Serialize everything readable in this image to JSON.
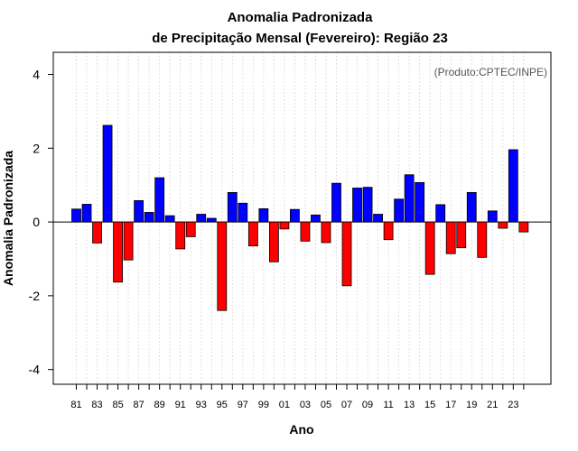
{
  "chart_data": {
    "type": "bar",
    "title": "Anomalia Padronizada",
    "subtitle": "de Precipitação Mensal (Fevereiro): Região 23",
    "xlabel": "Ano",
    "ylabel": "Anomalia Padronizada",
    "annotation": "(Produto:CPTEC/INPE)",
    "ylim": [
      -4.4,
      4.6
    ],
    "yticks": [
      -4,
      -2,
      0,
      2,
      4
    ],
    "xtick_labels": [
      "81",
      "83",
      "85",
      "87",
      "89",
      "91",
      "93",
      "95",
      "97",
      "99",
      "01",
      "03",
      "05",
      "07",
      "09",
      "11",
      "13",
      "15",
      "17",
      "19",
      "21",
      "23"
    ],
    "grid": "vertical dotted",
    "colors": {
      "positive": "#0000ff",
      "negative": "#ff0000"
    },
    "categories": [
      "1981",
      "1982",
      "1983",
      "1984",
      "1985",
      "1986",
      "1987",
      "1988",
      "1989",
      "1990",
      "1991",
      "1992",
      "1993",
      "1994",
      "1995",
      "1996",
      "1997",
      "1998",
      "1999",
      "2000",
      "2001",
      "2002",
      "2003",
      "2004",
      "2005",
      "2006",
      "2007",
      "2008",
      "2009",
      "2010",
      "2011",
      "2012",
      "2013",
      "2014",
      "2015",
      "2016",
      "2017",
      "2018",
      "2019",
      "2020",
      "2021",
      "2022",
      "2023",
      "2024"
    ],
    "values": [
      0.35,
      0.48,
      -0.57,
      2.62,
      -1.63,
      -1.03,
      0.58,
      0.26,
      1.2,
      0.17,
      -0.73,
      -0.4,
      0.21,
      0.1,
      -2.4,
      0.8,
      0.51,
      -0.65,
      0.36,
      -1.08,
      -0.19,
      0.34,
      -0.52,
      0.19,
      -0.56,
      1.05,
      -1.73,
      0.92,
      0.94,
      0.21,
      -0.48,
      0.62,
      1.28,
      1.07,
      -1.42,
      0.47,
      -0.86,
      -0.7,
      0.8,
      -0.96,
      0.3,
      -0.17,
      1.96,
      -0.27
    ]
  }
}
